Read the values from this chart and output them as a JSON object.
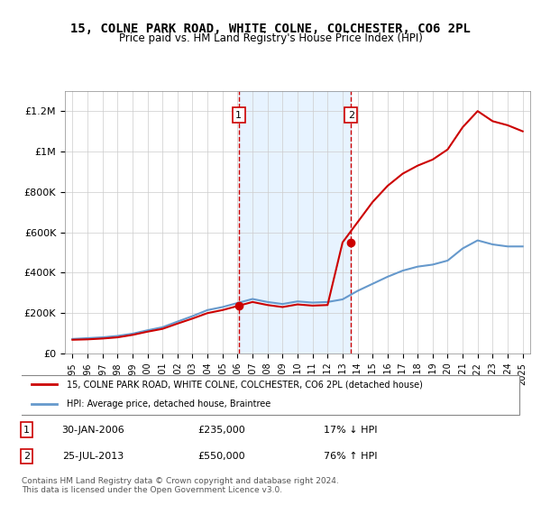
{
  "title": "15, COLNE PARK ROAD, WHITE COLNE, COLCHESTER, CO6 2PL",
  "subtitle": "Price paid vs. HM Land Registry's House Price Index (HPI)",
  "hpi_label": "HPI: Average price, detached house, Braintree",
  "property_label": "15, COLNE PARK ROAD, WHITE COLNE, COLCHESTER, CO6 2PL (detached house)",
  "footer1": "Contains HM Land Registry data © Crown copyright and database right 2024.",
  "footer2": "This data is licensed under the Open Government Licence v3.0.",
  "sale1_date": "30-JAN-2006",
  "sale1_price": 235000,
  "sale1_pct": "17% ↓ HPI",
  "sale2_date": "25-JUL-2013",
  "sale2_price": 550000,
  "sale2_pct": "76% ↑ HPI",
  "property_color": "#cc0000",
  "hpi_color": "#6699cc",
  "shade_color": "#ddeeff",
  "ylim_max": 1300000,
  "hpi_years": [
    1995,
    1996,
    1997,
    1998,
    1999,
    2000,
    2001,
    2002,
    2003,
    2004,
    2005,
    2006,
    2007,
    2008,
    2009,
    2010,
    2011,
    2012,
    2013,
    2014,
    2015,
    2016,
    2017,
    2018,
    2019,
    2020,
    2021,
    2022,
    2023,
    2024,
    2025
  ],
  "hpi_values": [
    72000,
    76000,
    80000,
    87000,
    98000,
    115000,
    130000,
    158000,
    185000,
    215000,
    230000,
    250000,
    270000,
    255000,
    245000,
    258000,
    252000,
    255000,
    268000,
    310000,
    345000,
    380000,
    410000,
    430000,
    440000,
    460000,
    520000,
    560000,
    540000,
    530000,
    530000
  ],
  "property_years": [
    1995,
    1996,
    1997,
    1998,
    1999,
    2000,
    2001,
    2002,
    2003,
    2004,
    2005,
    2006,
    2007,
    2008,
    2009,
    2010,
    2011,
    2012,
    2013,
    2014,
    2015,
    2016,
    2017,
    2018,
    2019,
    2020,
    2021,
    2022,
    2023,
    2024,
    2025
  ],
  "property_values": [
    68000,
    70000,
    74000,
    80000,
    92000,
    108000,
    122000,
    148000,
    173000,
    200000,
    215000,
    235000,
    255000,
    240000,
    230000,
    243000,
    237000,
    240000,
    550000,
    650000,
    750000,
    830000,
    890000,
    930000,
    960000,
    1010000,
    1120000,
    1200000,
    1150000,
    1130000,
    1100000
  ],
  "sale1_x": 2006.08,
  "sale2_x": 2013.56,
  "xticks": [
    1995,
    1996,
    1997,
    1998,
    1999,
    2000,
    2001,
    2002,
    2003,
    2004,
    2005,
    2006,
    2007,
    2008,
    2009,
    2010,
    2011,
    2012,
    2013,
    2014,
    2015,
    2016,
    2017,
    2018,
    2019,
    2020,
    2021,
    2022,
    2023,
    2024,
    2025
  ],
  "yticks": [
    0,
    200000,
    400000,
    600000,
    800000,
    1000000,
    1200000
  ],
  "ytick_labels": [
    "£0",
    "£200K",
    "£400K",
    "£600K",
    "£800K",
    "£1M",
    "£1.2M"
  ]
}
